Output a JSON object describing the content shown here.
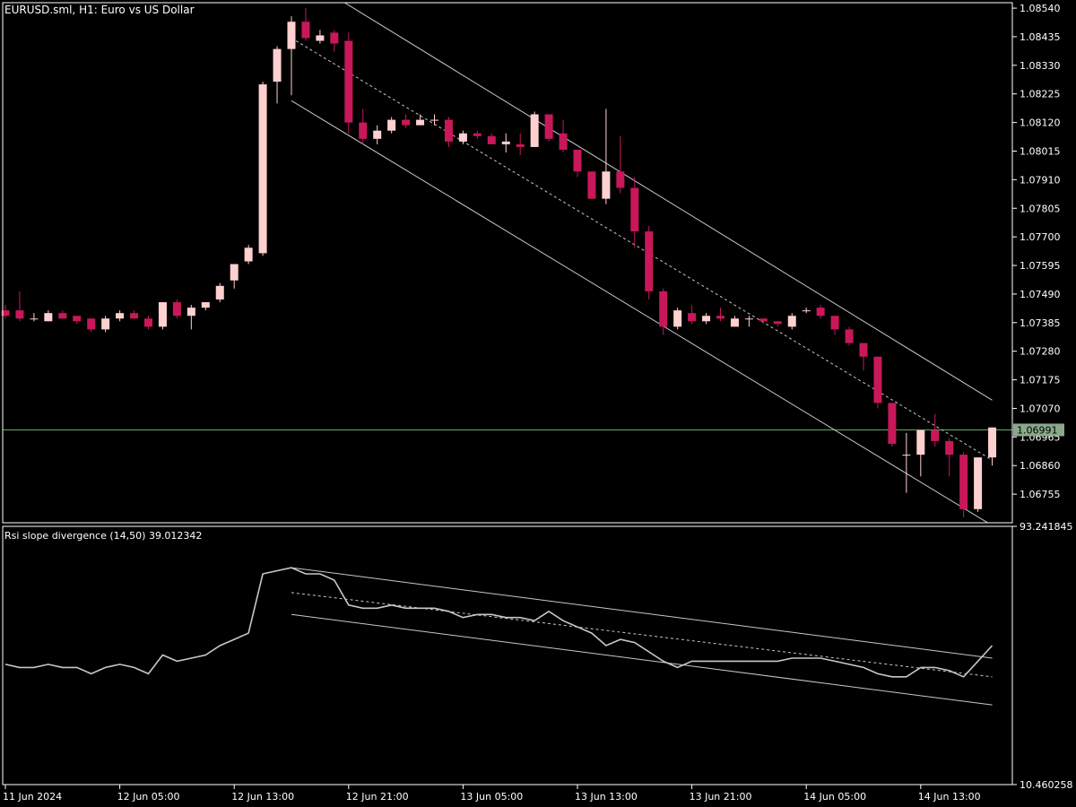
{
  "chart_data": [
    {
      "type": "candlestick",
      "title": "EURUSD.sml, H1:  Euro vs US Dollar",
      "ylim": [
        1.0665,
        1.0856
      ],
      "y_ticks": [
        "1.08540",
        "1.08435",
        "1.08330",
        "1.08225",
        "1.08120",
        "1.08015",
        "1.07910",
        "1.07805",
        "1.07700",
        "1.07595",
        "1.07490",
        "1.07385",
        "1.07280",
        "1.07175",
        "1.07070",
        "1.06965",
        "1.06860",
        "1.06755"
      ],
      "current_price": 1.06991,
      "current_price_label": "1.06991",
      "colors": {
        "bull": "#ffd0d0",
        "bear": "#c8185a",
        "price_line": "#5aa05a",
        "channel": "#c8c8c8"
      },
      "candles": [
        {
          "o": 1.0743,
          "h": 1.0745,
          "l": 1.074,
          "c": 1.0741
        },
        {
          "o": 1.0743,
          "h": 1.075,
          "l": 1.0739,
          "c": 1.074
        },
        {
          "o": 1.074,
          "h": 1.0742,
          "l": 1.0739,
          "c": 1.074
        },
        {
          "o": 1.0739,
          "h": 1.0743,
          "l": 1.0739,
          "c": 1.0742
        },
        {
          "o": 1.0742,
          "h": 1.0743,
          "l": 1.074,
          "c": 1.074
        },
        {
          "o": 1.0741,
          "h": 1.0741,
          "l": 1.0738,
          "c": 1.0739
        },
        {
          "o": 1.074,
          "h": 1.074,
          "l": 1.0735,
          "c": 1.0736
        },
        {
          "o": 1.0736,
          "h": 1.0741,
          "l": 1.0735,
          "c": 1.074
        },
        {
          "o": 1.074,
          "h": 1.0743,
          "l": 1.0739,
          "c": 1.0742
        },
        {
          "o": 1.0742,
          "h": 1.0743,
          "l": 1.074,
          "c": 1.074
        },
        {
          "o": 1.074,
          "h": 1.0741,
          "l": 1.0736,
          "c": 1.0737
        },
        {
          "o": 1.0737,
          "h": 1.0746,
          "l": 1.0736,
          "c": 1.0746
        },
        {
          "o": 1.0746,
          "h": 1.0747,
          "l": 1.074,
          "c": 1.0741
        },
        {
          "o": 1.0741,
          "h": 1.0745,
          "l": 1.0736,
          "c": 1.0744
        },
        {
          "o": 1.0744,
          "h": 1.0746,
          "l": 1.0743,
          "c": 1.0746
        },
        {
          "o": 1.0747,
          "h": 1.0753,
          "l": 1.0746,
          "c": 1.0752
        },
        {
          "o": 1.0754,
          "h": 1.076,
          "l": 1.0751,
          "c": 1.076
        },
        {
          "o": 1.0761,
          "h": 1.0767,
          "l": 1.076,
          "c": 1.0766
        },
        {
          "o": 1.0764,
          "h": 1.0827,
          "l": 1.0763,
          "c": 1.0826
        },
        {
          "o": 1.0827,
          "h": 1.084,
          "l": 1.0819,
          "c": 1.0839
        },
        {
          "o": 1.0839,
          "h": 1.0851,
          "l": 1.0822,
          "c": 1.0849
        },
        {
          "o": 1.0849,
          "h": 1.0854,
          "l": 1.0842,
          "c": 1.0843
        },
        {
          "o": 1.0842,
          "h": 1.0846,
          "l": 1.0841,
          "c": 1.0844
        },
        {
          "o": 1.0845,
          "h": 1.0846,
          "l": 1.0838,
          "c": 1.0841
        },
        {
          "o": 1.0842,
          "h": 1.0845,
          "l": 1.0808,
          "c": 1.0812
        },
        {
          "o": 1.0812,
          "h": 1.0817,
          "l": 1.0804,
          "c": 1.0806
        },
        {
          "o": 1.0806,
          "h": 1.0811,
          "l": 1.0804,
          "c": 1.0809
        },
        {
          "o": 1.0809,
          "h": 1.0814,
          "l": 1.0808,
          "c": 1.0813
        },
        {
          "o": 1.0813,
          "h": 1.0815,
          "l": 1.081,
          "c": 1.0811
        },
        {
          "o": 1.0811,
          "h": 1.0815,
          "l": 1.0811,
          "c": 1.0813
        },
        {
          "o": 1.0813,
          "h": 1.0815,
          "l": 1.0811,
          "c": 1.0813
        },
        {
          "o": 1.0813,
          "h": 1.0814,
          "l": 1.0803,
          "c": 1.0805
        },
        {
          "o": 1.0805,
          "h": 1.0809,
          "l": 1.0804,
          "c": 1.0808
        },
        {
          "o": 1.0808,
          "h": 1.0809,
          "l": 1.0806,
          "c": 1.0807
        },
        {
          "o": 1.0807,
          "h": 1.0808,
          "l": 1.0804,
          "c": 1.0804
        },
        {
          "o": 1.0804,
          "h": 1.0808,
          "l": 1.0801,
          "c": 1.0805
        },
        {
          "o": 1.0804,
          "h": 1.0808,
          "l": 1.08,
          "c": 1.0803
        },
        {
          "o": 1.0803,
          "h": 1.0816,
          "l": 1.0803,
          "c": 1.0815
        },
        {
          "o": 1.0815,
          "h": 1.0815,
          "l": 1.0805,
          "c": 1.0806
        },
        {
          "o": 1.0808,
          "h": 1.0813,
          "l": 1.0801,
          "c": 1.0802
        },
        {
          "o": 1.0802,
          "h": 1.0802,
          "l": 1.0792,
          "c": 1.0794
        },
        {
          "o": 1.0794,
          "h": 1.0794,
          "l": 1.0784,
          "c": 1.0784
        },
        {
          "o": 1.0784,
          "h": 1.0817,
          "l": 1.0782,
          "c": 1.0794
        },
        {
          "o": 1.0794,
          "h": 1.0807,
          "l": 1.0786,
          "c": 1.0788
        },
        {
          "o": 1.0788,
          "h": 1.0792,
          "l": 1.0766,
          "c": 1.0772
        },
        {
          "o": 1.0772,
          "h": 1.0774,
          "l": 1.0747,
          "c": 1.075
        },
        {
          "o": 1.075,
          "h": 1.0751,
          "l": 1.0734,
          "c": 1.0737
        },
        {
          "o": 1.0737,
          "h": 1.0744,
          "l": 1.0736,
          "c": 1.0743
        },
        {
          "o": 1.0742,
          "h": 1.0745,
          "l": 1.0738,
          "c": 1.0739
        },
        {
          "o": 1.0739,
          "h": 1.0742,
          "l": 1.0738,
          "c": 1.0741
        },
        {
          "o": 1.0741,
          "h": 1.0744,
          "l": 1.0739,
          "c": 1.074
        },
        {
          "o": 1.0737,
          "h": 1.0741,
          "l": 1.0737,
          "c": 1.074
        },
        {
          "o": 1.074,
          "h": 1.0741,
          "l": 1.0737,
          "c": 1.074
        },
        {
          "o": 1.074,
          "h": 1.074,
          "l": 1.0738,
          "c": 1.0739
        },
        {
          "o": 1.0739,
          "h": 1.0739,
          "l": 1.0737,
          "c": 1.0738
        },
        {
          "o": 1.0737,
          "h": 1.0742,
          "l": 1.0736,
          "c": 1.0741
        },
        {
          "o": 1.0743,
          "h": 1.0744,
          "l": 1.0742,
          "c": 1.0743
        },
        {
          "o": 1.0744,
          "h": 1.0745,
          "l": 1.074,
          "c": 1.0741
        },
        {
          "o": 1.0741,
          "h": 1.0741,
          "l": 1.0734,
          "c": 1.0736
        },
        {
          "o": 1.0736,
          "h": 1.0737,
          "l": 1.073,
          "c": 1.0731
        },
        {
          "o": 1.0731,
          "h": 1.0731,
          "l": 1.0721,
          "c": 1.0726
        },
        {
          "o": 1.0726,
          "h": 1.0726,
          "l": 1.0707,
          "c": 1.0709
        },
        {
          "o": 1.0709,
          "h": 1.0709,
          "l": 1.0693,
          "c": 1.0694
        },
        {
          "o": 1.069,
          "h": 1.0698,
          "l": 1.0676,
          "c": 1.069
        },
        {
          "o": 1.069,
          "h": 1.0699,
          "l": 1.0682,
          "c": 1.0699
        },
        {
          "o": 1.0699,
          "h": 1.0705,
          "l": 1.0693,
          "c": 1.0695
        },
        {
          "o": 1.0695,
          "h": 1.0696,
          "l": 1.0682,
          "c": 1.069
        },
        {
          "o": 1.069,
          "h": 1.0691,
          "l": 1.0667,
          "c": 1.067
        },
        {
          "o": 1.067,
          "h": 1.0689,
          "l": 1.0669,
          "c": 1.0689
        },
        {
          "o": 1.0689,
          "h": 1.07,
          "l": 1.0686,
          "c": 1.07
        }
      ],
      "channel": {
        "start_index": 20,
        "end_index": 69,
        "mid": [
          1.0843,
          1.0688
        ],
        "upper": [
          1.0868,
          1.071
        ],
        "lower": [
          1.082,
          1.0664
        ]
      }
    },
    {
      "type": "line",
      "title": "Rsi slope divergence (14,50) 39.012342",
      "ylim": [
        10.460258,
        93.241845
      ],
      "y_ticks": [
        "93.241845",
        "10.460258"
      ],
      "colors": {
        "line": "#c8c8c8",
        "channel": "#c8c8c8"
      },
      "series": [
        {
          "values": [
            49,
            48,
            48,
            49,
            48,
            48,
            46,
            48,
            49,
            48,
            46,
            52,
            50,
            51,
            52,
            55,
            57,
            59,
            78,
            79,
            80,
            78,
            78,
            76,
            68,
            67,
            67,
            68,
            67,
            67,
            67,
            66,
            64,
            65,
            65,
            64,
            64,
            63,
            66,
            63,
            61,
            59,
            55,
            57,
            56,
            53,
            50,
            48,
            50,
            50,
            50,
            50,
            50,
            50,
            50,
            51,
            51,
            51,
            50,
            49,
            48,
            46,
            45,
            45,
            48,
            48,
            47,
            45,
            50,
            55
          ]
        }
      ],
      "channel": {
        "start_index": 20,
        "end_index": 69,
        "mid": [
          72,
          45
        ],
        "upper": [
          80,
          51
        ],
        "lower": [
          65,
          36
        ]
      },
      "x_ticks": [
        {
          "i": 0,
          "label": "11 Jun 2024"
        },
        {
          "i": 8,
          "label": "12 Jun 05:00"
        },
        {
          "i": 16,
          "label": "12 Jun 13:00"
        },
        {
          "i": 24,
          "label": "12 Jun 21:00"
        },
        {
          "i": 32,
          "label": "13 Jun 05:00"
        },
        {
          "i": 40,
          "label": "13 Jun 13:00"
        },
        {
          "i": 48,
          "label": "13 Jun 21:00"
        },
        {
          "i": 56,
          "label": "14 Jun 05:00"
        },
        {
          "i": 64,
          "label": "14 Jun 13:00"
        }
      ]
    }
  ]
}
